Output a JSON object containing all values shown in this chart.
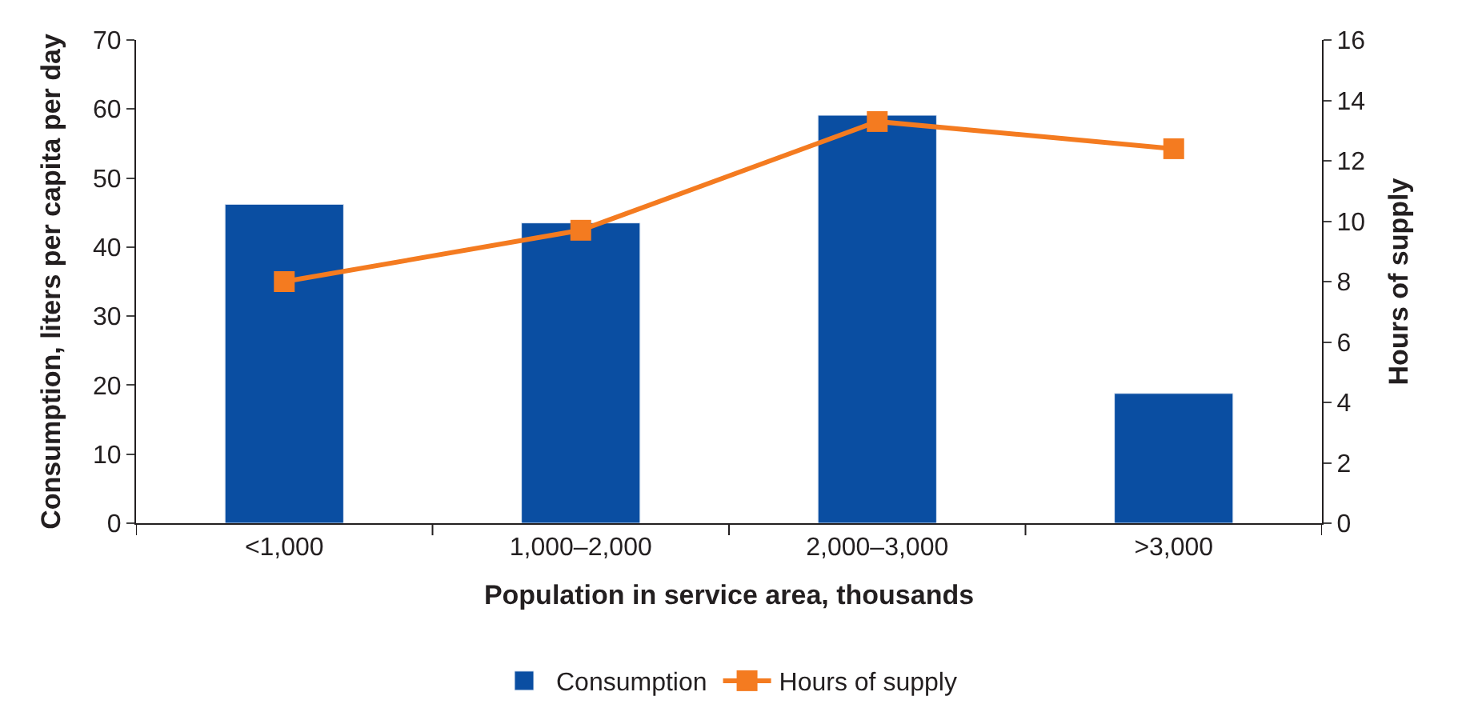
{
  "chart_data": {
    "type": "bar",
    "xlabel": "Population in service area, thousands",
    "ylabel": "Consumption, liters per capita per day",
    "y2label": "Hours of supply",
    "categories": [
      "<1,000",
      "1,000–2,000",
      "2,000–3,000",
      ">3,000"
    ],
    "series": [
      {
        "name": "Consumption",
        "color": "#0a4ea2",
        "values": [
          46.2,
          43.5,
          59.1,
          18.8
        ]
      },
      {
        "name": "Hours of supply",
        "type": "line",
        "axis": "y2",
        "color": "#f47b20",
        "marker": "square",
        "values": [
          8.0,
          9.7,
          13.3,
          12.4
        ]
      }
    ],
    "ylim": [
      0,
      70
    ],
    "yticks": [
      0,
      10,
      20,
      30,
      40,
      50,
      60,
      70
    ],
    "y2lim": [
      0,
      16
    ],
    "y2ticks": [
      0,
      2,
      4,
      6,
      8,
      10,
      12,
      14,
      16
    ],
    "legend": "bottom"
  }
}
